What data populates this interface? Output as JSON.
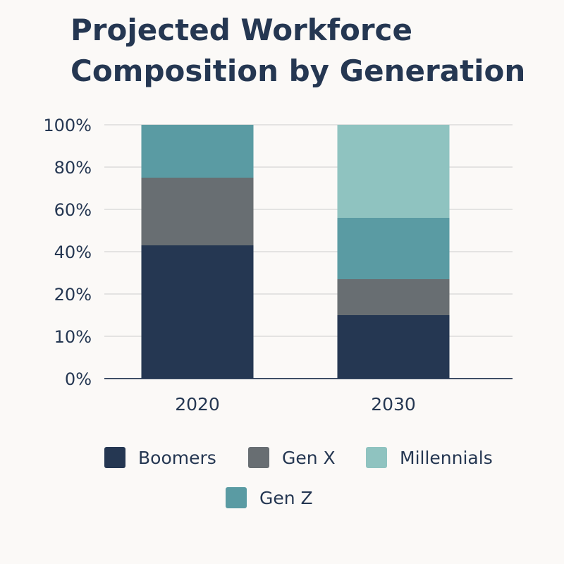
{
  "chart_data": {
    "type": "bar",
    "stacked": true,
    "title": "Projected Workforce Composition by Generation",
    "xlabel": "",
    "ylabel": "",
    "categories": [
      "2020",
      "2030"
    ],
    "y_ticks": [
      "0%",
      "10%",
      "20%",
      "40%",
      "60%",
      "80%",
      "100%"
    ],
    "y_tick_values": [
      0,
      10,
      20,
      40,
      60,
      80,
      100
    ],
    "ylim": [
      0,
      100
    ],
    "grid": true,
    "legend_placement": "bottom",
    "stack_order": [
      "Boomers",
      "Gen X",
      "Gen Z",
      "Millennials"
    ],
    "series": [
      {
        "name": "Boomers",
        "color": "#253752",
        "values": [
          43,
          15
        ]
      },
      {
        "name": "Gen X",
        "color": "#686e72",
        "values": [
          32,
          12
        ]
      },
      {
        "name": "Gen Z",
        "color": "#5a9ba3",
        "values": [
          25,
          29
        ]
      },
      {
        "name": "Millennials",
        "color": "#8fc3c0",
        "values": [
          0,
          44
        ]
      }
    ],
    "legend": [
      "Boomers",
      "Gen X",
      "Millennials",
      "Gen Z"
    ]
  }
}
